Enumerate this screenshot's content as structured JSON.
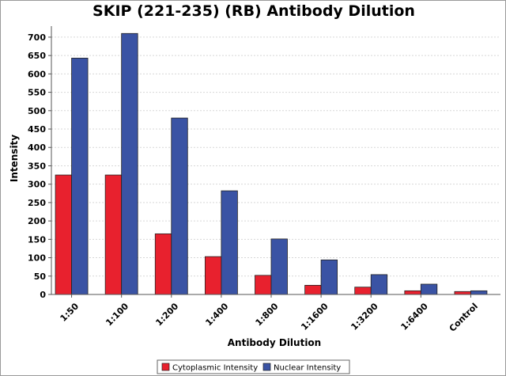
{
  "chart_data": {
    "type": "bar",
    "title": "SKIP (221-235) (RB) Antibody Dilution",
    "xlabel": "Antibody Dilution",
    "ylabel": "Intensity",
    "categories": [
      "1:50",
      "1:100",
      "1:200",
      "1:400",
      "1:800",
      "1:1600",
      "1:3200",
      "1:6400",
      "Control"
    ],
    "series": [
      {
        "name": "Cytoplasmic Intensity",
        "color": "#e8212e",
        "values": [
          325,
          325,
          165,
          103,
          52,
          25,
          20,
          10,
          8
        ]
      },
      {
        "name": "Nuclear Intensity",
        "color": "#3a53a4",
        "values": [
          643,
          710,
          480,
          282,
          151,
          94,
          54,
          28,
          10
        ]
      }
    ],
    "ylim": [
      0,
      730
    ],
    "yticks": [
      0,
      50,
      100,
      150,
      200,
      250,
      300,
      350,
      400,
      450,
      500,
      550,
      600,
      650,
      700
    ],
    "grid": true,
    "legend_position": "bottom-center"
  }
}
